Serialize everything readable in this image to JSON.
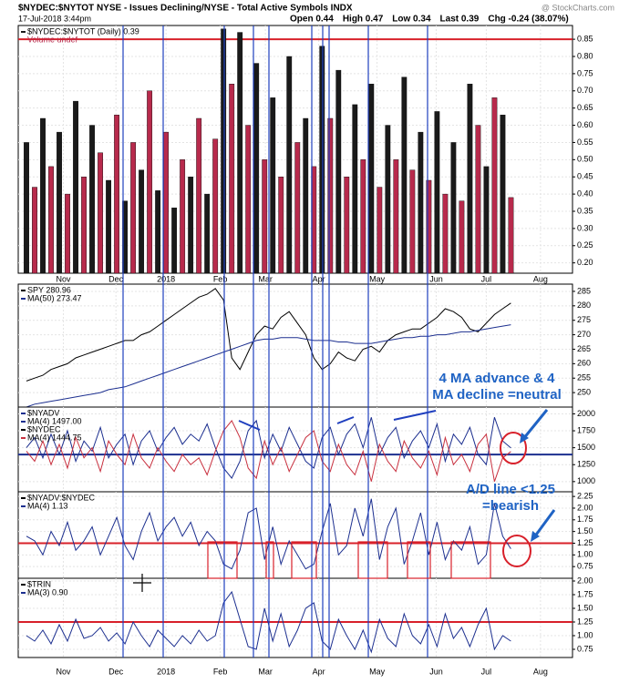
{
  "header": {
    "title": "$NYDEC:$NYTOT NYSE - Issues Declining/NYSE - Total Active Symbols INDX",
    "date": "17-Jul-2018 3:44pm",
    "quote": [
      "Open 0.44",
      "High 0.47",
      "Low 0.34",
      "Last 0.39",
      "Chg -0.24 (38.07%)"
    ],
    "watermark": "@ StockCharts.com"
  },
  "x_axis": {
    "xlim": [
      0,
      67.5
    ],
    "x": [
      1,
      2,
      3,
      4,
      5,
      6,
      7,
      8,
      9,
      10,
      11,
      12,
      13,
      14,
      15,
      16,
      17,
      18,
      19,
      20,
      21,
      22,
      23,
      24,
      25,
      26,
      27,
      28,
      29,
      30,
      31,
      32,
      33,
      34,
      35,
      36,
      37,
      38,
      39,
      40,
      41,
      42,
      43,
      44,
      45,
      46,
      47,
      48,
      49,
      50,
      51,
      52,
      53,
      54,
      55,
      56,
      57,
      58,
      59,
      60
    ],
    "xticks": [
      {
        "value": 5.5,
        "label": "Nov"
      },
      {
        "value": 11.9,
        "label": "Dec"
      },
      {
        "value": 18,
        "label": "2018"
      },
      {
        "value": 24.6,
        "label": "Feb"
      },
      {
        "value": 30.1,
        "label": "Mar"
      },
      {
        "value": 36.6,
        "label": "Apr"
      },
      {
        "value": 43.7,
        "label": "May"
      },
      {
        "value": 50.9,
        "label": "Jun"
      },
      {
        "value": 57,
        "label": "Jul"
      },
      {
        "value": 63.6,
        "label": "Aug"
      }
    ]
  },
  "chart_data": [
    {
      "type": "bar",
      "ylim": [
        0.17,
        0.89
      ],
      "hline": 0.85,
      "hline_color": "#d8202a",
      "bar_colors": [
        "#1a1a1a",
        "#b82a4c"
      ],
      "yticks": [
        {
          "value": 0.2,
          "label": "0.20"
        },
        0.25,
        {
          "value": 0.3,
          "label": "0.30"
        },
        0.35,
        {
          "value": 0.4,
          "label": "0.40"
        },
        0.45,
        {
          "value": 0.5,
          "label": "0.50"
        },
        0.55,
        {
          "value": 0.6,
          "label": "0.60"
        },
        0.65,
        {
          "value": 0.7,
          "label": "0.70"
        },
        0.75,
        {
          "value": 0.8,
          "label": "0.80"
        },
        0.85
      ],
      "legend_extra": [
        "Volume undef"
      ],
      "series": [
        {
          "name": "$NYDEC:$NYTOT (Daily) 0.39",
          "color": "#1a1a1a",
          "values": [
            0.55,
            0.42,
            0.62,
            0.48,
            0.58,
            0.4,
            0.67,
            0.45,
            0.6,
            0.52,
            0.44,
            0.63,
            0.38,
            0.55,
            0.47,
            0.7,
            0.41,
            0.58,
            0.36,
            0.5,
            0.45,
            0.62,
            0.4,
            0.56,
            0.88,
            0.72,
            0.87,
            0.6,
            0.78,
            0.5,
            0.68,
            0.45,
            0.8,
            0.55,
            0.62,
            0.48,
            0.83,
            0.62,
            0.76,
            0.45,
            0.66,
            0.5,
            0.72,
            0.42,
            0.6,
            0.5,
            0.74,
            0.47,
            0.58,
            0.44,
            0.64,
            0.4,
            0.55,
            0.38,
            0.72,
            0.6,
            0.48,
            0.68,
            0.63,
            0.39
          ]
        }
      ]
    },
    {
      "type": "line",
      "ylim": [
        245,
        287.5
      ],
      "yticks": [
        250,
        255,
        260,
        265,
        270,
        275,
        280,
        285
      ],
      "legend_extra": [],
      "series": [
        {
          "name": "SPY 280.96",
          "color": "#000000",
          "values": [
            254,
            255,
            256,
            258,
            259,
            260,
            262,
            263,
            264,
            265,
            266,
            267,
            268,
            268,
            270,
            271,
            273,
            275,
            277,
            279,
            281,
            283,
            284,
            286,
            282,
            262,
            258,
            264,
            270,
            273,
            272,
            276,
            278,
            274,
            270,
            262,
            258,
            260,
            264,
            262,
            261,
            265,
            266,
            264,
            268,
            270,
            271,
            272,
            272,
            274,
            276,
            279,
            278,
            276,
            272,
            271,
            274,
            277,
            279,
            280.96
          ]
        },
        {
          "name": "MA(50) 273.47",
          "color": "#1c2f8f",
          "values": [
            245,
            246,
            246.5,
            247,
            247.5,
            248,
            248.5,
            249,
            249.5,
            250,
            251,
            251.5,
            252,
            253,
            254,
            255,
            256,
            257,
            258,
            259,
            260,
            261,
            262,
            263,
            264,
            265,
            266,
            267,
            268,
            268.5,
            268.5,
            269,
            269,
            269,
            268.5,
            268,
            268,
            268,
            267.5,
            267.5,
            267,
            267,
            267,
            267.5,
            268,
            268.5,
            269,
            269,
            269.5,
            269.5,
            270,
            270,
            270.5,
            271,
            271,
            271.5,
            272,
            272.5,
            273,
            273.47
          ]
        }
      ]
    },
    {
      "type": "line",
      "ylim": [
        850,
        2100
      ],
      "hline": 1400,
      "hline_color": "#1c2f8f",
      "yticks": [
        1000,
        1250,
        1500,
        1750,
        2000
      ],
      "legend_extra": [],
      "series": [
        {
          "name": "$NYADV",
          "color": "#1c2f8f",
          "legend_only": true,
          "values": []
        },
        {
          "name": "MA(4) 1497.00",
          "color": "#1c2f8f",
          "values": [
            1500,
            1650,
            1350,
            1700,
            1400,
            1750,
            1300,
            1600,
            1450,
            1800,
            1350,
            1550,
            1700,
            1250,
            1600,
            1750,
            1450,
            1650,
            1800,
            1550,
            1700,
            1600,
            1850,
            1500,
            1200,
            1050,
            1300,
            1750,
            1900,
            1350,
            1700,
            1450,
            1800,
            1550,
            1300,
            1200,
            1650,
            1800,
            1400,
            1700,
            1850,
            1500,
            1950,
            1400,
            1650,
            1800,
            1350,
            1600,
            1750,
            1500,
            1850,
            1300,
            1700,
            1550,
            1800,
            1400,
            1250,
            1950,
            1600,
            1497
          ]
        },
        {
          "name": "$NYDEC",
          "color": "#000000",
          "legend_only": true,
          "values": []
        },
        {
          "name": "MA(4) 1444.75",
          "color": "#c8303f",
          "values": [
            1450,
            1300,
            1600,
            1250,
            1550,
            1200,
            1650,
            1350,
            1500,
            1150,
            1600,
            1400,
            1250,
            1700,
            1350,
            1200,
            1500,
            1300,
            1150,
            1400,
            1250,
            1350,
            1100,
            1450,
            1750,
            1900,
            1650,
            1200,
            1050,
            1600,
            1250,
            1500,
            1150,
            1400,
            1650,
            1750,
            1300,
            1150,
            1550,
            1250,
            1100,
            1450,
            1000,
            1550,
            1300,
            1150,
            1600,
            1350,
            1200,
            1450,
            1100,
            1650,
            1250,
            1400,
            1150,
            1550,
            1700,
            1000,
            1350,
            1444.75
          ]
        }
      ],
      "annotation": [
        "4 MA advance & 4",
        "MA decline =neutral"
      ]
    },
    {
      "type": "line",
      "ylim": [
        0.5,
        2.35
      ],
      "hline": 1.25,
      "hline_color": "#d8202a",
      "yticks": [
        0.75,
        {
          "value": 1,
          "label": "1.00"
        },
        1.25,
        {
          "value": 1.5,
          "label": "1.50"
        },
        1.75,
        {
          "value": 2,
          "label": "2.00"
        },
        2.25
      ],
      "legend_extra": [],
      "series": [
        {
          "name": "$NYADV:$NYDEC",
          "color": "#000000",
          "legend_only": true,
          "values": []
        },
        {
          "name": "MA(4) 1.13",
          "color": "#1c2f8f",
          "values": [
            1.4,
            1.3,
            1.0,
            1.5,
            1.2,
            1.7,
            1.1,
            1.3,
            1.6,
            1.0,
            1.4,
            1.8,
            1.2,
            0.9,
            1.5,
            1.9,
            1.3,
            1.6,
            1.8,
            1.4,
            1.7,
            1.2,
            1.5,
            1.3,
            0.8,
            0.7,
            1.1,
            1.9,
            2.0,
            0.9,
            1.6,
            0.8,
            1.3,
            1.0,
            0.7,
            0.8,
            1.5,
            2.1,
            1.0,
            1.2,
            2.0,
            1.4,
            2.2,
            0.9,
            1.6,
            2.0,
            0.8,
            1.3,
            1.9,
            1.0,
            1.7,
            0.9,
            1.3,
            1.1,
            1.6,
            0.8,
            1.0,
            2.1,
            1.4,
            1.13
          ]
        }
      ],
      "annotation": [
        "A/D line <1.25",
        "=bearish"
      ]
    },
    {
      "type": "line",
      "ylim": [
        0.6,
        2.05
      ],
      "hline": 1.25,
      "hline_color": "#d8202a",
      "yticks": [
        0.75,
        {
          "value": 1,
          "label": "1.00"
        },
        1.25,
        {
          "value": 1.5,
          "label": "1.50"
        },
        1.75,
        {
          "value": 2,
          "label": "2.00"
        }
      ],
      "legend_extra": [],
      "series": [
        {
          "name": "$TRIN",
          "color": "#000000",
          "legend_only": true,
          "values": []
        },
        {
          "name": "MA(3) 0.90",
          "color": "#1c2f8f",
          "values": [
            1.0,
            0.9,
            1.1,
            0.85,
            1.2,
            0.9,
            1.3,
            0.95,
            1.0,
            1.15,
            0.9,
            1.05,
            0.85,
            1.25,
            1.0,
            0.8,
            1.1,
            0.95,
            0.8,
            1.0,
            0.85,
            1.1,
            0.9,
            1.0,
            1.6,
            1.8,
            1.3,
            0.8,
            0.75,
            1.5,
            0.9,
            1.4,
            0.8,
            1.1,
            1.5,
            1.6,
            0.9,
            0.75,
            1.3,
            1.0,
            0.75,
            1.1,
            0.7,
            1.3,
            0.95,
            0.8,
            1.4,
            1.0,
            0.85,
            1.2,
            0.8,
            1.4,
            0.95,
            1.15,
            0.8,
            1.2,
            1.5,
            0.75,
            1.0,
            0.9
          ]
        }
      ]
    }
  ]
}
